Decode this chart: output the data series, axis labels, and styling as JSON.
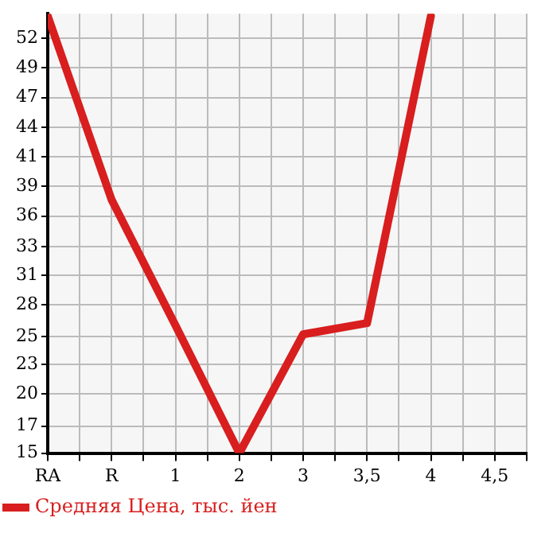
{
  "chart_data": {
    "type": "line",
    "categories": [
      "RA",
      "R",
      "1",
      "2",
      "3",
      "3,5",
      "4",
      "4,5"
    ],
    "series": [
      {
        "name": "Средняя Цена, тыс. йен",
        "color": "#d81e1e",
        "values": [
          54,
          37.6,
          26.4,
          15,
          25.6,
          26.6,
          54,
          null
        ]
      }
    ],
    "ylim": [
      15,
      54.2
    ],
    "yticks": [
      15,
      {
        "value": 17.4,
        "label": "17"
      },
      {
        "value": 20.29,
        "label": "20"
      },
      {
        "value": 22.93,
        "label": "23"
      },
      {
        "value": 25.4,
        "label": "25"
      },
      {
        "value": 28.21,
        "label": "28"
      },
      {
        "value": 30.86,
        "label": "31"
      },
      {
        "value": 33.4,
        "label": "33"
      },
      {
        "value": 36.14,
        "label": "36"
      },
      {
        "value": 38.79,
        "label": "39"
      },
      {
        "value": 41.43,
        "label": "41"
      },
      {
        "value": 44.07,
        "label": "44"
      },
      {
        "value": 46.71,
        "label": "47"
      },
      {
        "value": 49.36,
        "label": "49"
      },
      {
        "value": 52,
        "label": "52"
      }
    ],
    "grid": true,
    "legend": "bottom",
    "marker": "none",
    "line_style": "solid"
  }
}
